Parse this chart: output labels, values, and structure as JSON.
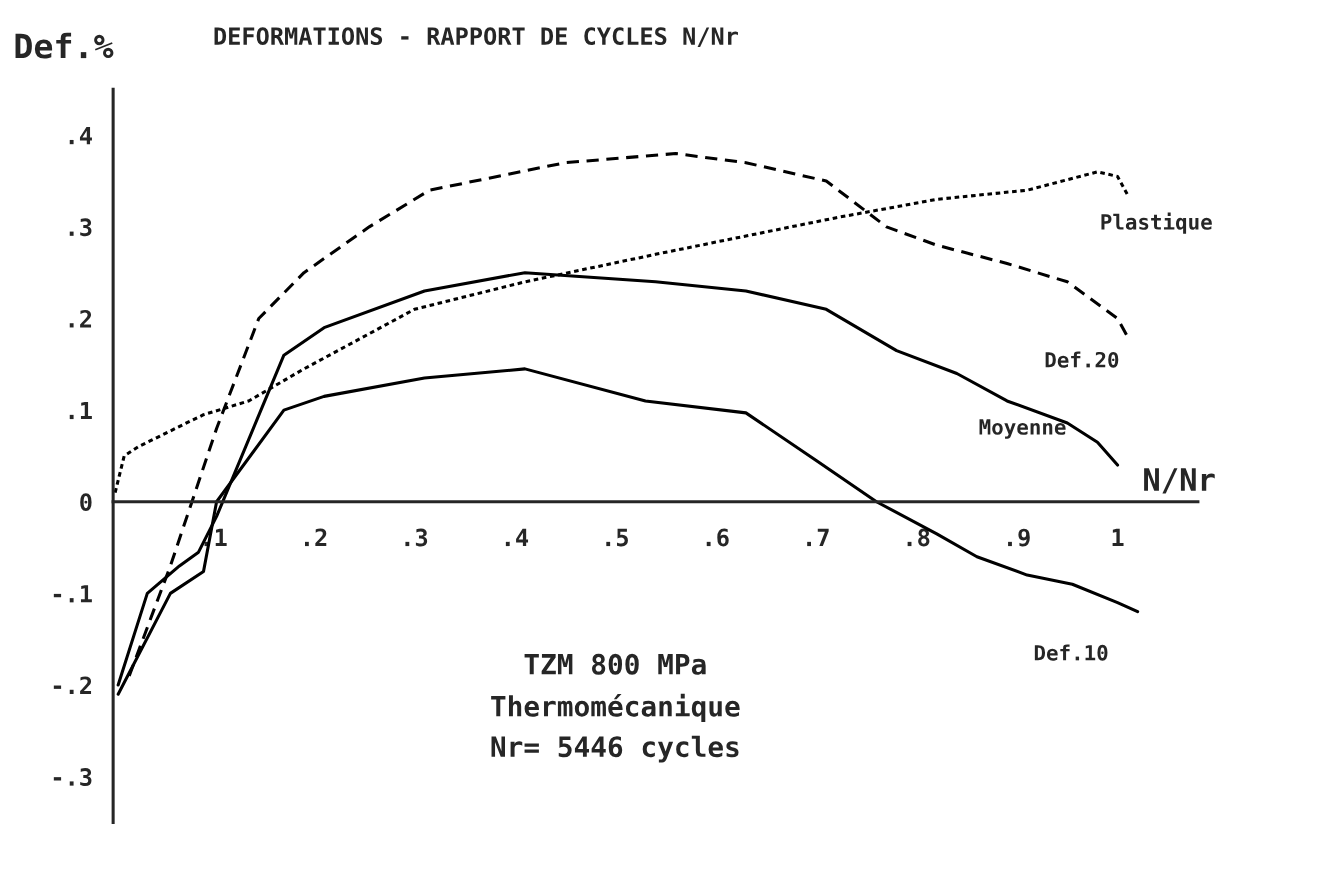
{
  "chart_data": {
    "type": "line",
    "title": "DEFORMATIONS - RAPPORT DE CYCLES N/Nr",
    "xlabel": "N/Nr",
    "ylabel": "Def.%",
    "xlim": [
      0,
      1.08
    ],
    "ylim": [
      -0.35,
      0.45
    ],
    "xticks": [
      {
        "value": 0.1,
        "label": ".1"
      },
      {
        "value": 0.2,
        "label": ".2"
      },
      {
        "value": 0.3,
        "label": ".3"
      },
      {
        "value": 0.4,
        "label": ".4"
      },
      {
        "value": 0.5,
        "label": ".5"
      },
      {
        "value": 0.6,
        "label": ".6"
      },
      {
        "value": 0.7,
        "label": ".7"
      },
      {
        "value": 0.8,
        "label": ".8"
      },
      {
        "value": 0.9,
        "label": ".9"
      },
      1
    ],
    "yticks": [
      {
        "value": -0.3,
        "label": "-.3"
      },
      {
        "value": -0.2,
        "label": "-.2"
      },
      {
        "value": -0.1,
        "label": "-.1"
      },
      0,
      {
        "value": 0.1,
        "label": ".1"
      },
      {
        "value": 0.2,
        "label": ".2"
      },
      {
        "value": 0.3,
        "label": ".3"
      },
      {
        "value": 0.4,
        "label": ".4"
      }
    ],
    "grid": false,
    "legend": false,
    "series": [
      {
        "name": "Plastique",
        "color": "#000000",
        "line_style": "dotted",
        "x": [
          0.002,
          0.011,
          0.025,
          0.062,
          0.09,
          0.135,
          0.19,
          0.3,
          0.41,
          0.54,
          0.72,
          0.82,
          0.91,
          0.98,
          1.0,
          1.01
        ],
        "values": [
          0.01,
          0.05,
          0.06,
          0.08,
          0.095,
          0.11,
          0.145,
          0.21,
          0.24,
          0.27,
          0.31,
          0.33,
          0.34,
          0.36,
          0.355,
          0.335
        ]
      },
      {
        "name": "Def.20",
        "color": "#000000",
        "line_style": "dashed",
        "x": [
          0.016,
          0.057,
          0.103,
          0.145,
          0.19,
          0.255,
          0.315,
          0.45,
          0.56,
          0.63,
          0.71,
          0.77,
          0.82,
          0.89,
          0.95,
          1.0,
          1.01
        ],
        "values": [
          -0.19,
          -0.07,
          0.08,
          0.2,
          0.25,
          0.3,
          0.34,
          0.37,
          0.38,
          0.37,
          0.35,
          0.3,
          0.28,
          0.26,
          0.24,
          0.2,
          0.18
        ]
      },
      {
        "name": "Moyenne",
        "color": "#000000",
        "line_style": "solid",
        "x": [
          0.005,
          0.034,
          0.066,
          0.085,
          0.103,
          0.17,
          0.21,
          0.31,
          0.41,
          0.54,
          0.63,
          0.71,
          0.78,
          0.84,
          0.89,
          0.95,
          0.98,
          1.0
        ],
        "values": [
          -0.2,
          -0.1,
          -0.07,
          -0.055,
          -0.016,
          0.16,
          0.19,
          0.23,
          0.25,
          0.24,
          0.23,
          0.21,
          0.165,
          0.14,
          0.11,
          0.086,
          0.065,
          0.04
        ]
      },
      {
        "name": "Def.10",
        "color": "#000000",
        "line_style": "solid",
        "x": [
          0.005,
          0.057,
          0.09,
          0.103,
          0.17,
          0.21,
          0.31,
          0.41,
          0.53,
          0.63,
          0.7,
          0.76,
          0.82,
          0.86,
          0.91,
          0.955,
          1.0,
          1.02
        ],
        "values": [
          -0.21,
          -0.1,
          -0.076,
          0.0,
          0.1,
          0.115,
          0.135,
          0.145,
          0.11,
          0.097,
          0.045,
          0.0,
          -0.035,
          -0.06,
          -0.08,
          -0.09,
          -0.11,
          -0.12
        ]
      }
    ],
    "annotations": [
      "TZM 800 MPa",
      "Thermomécanique",
      "Nr= 5446 cycles"
    ]
  }
}
